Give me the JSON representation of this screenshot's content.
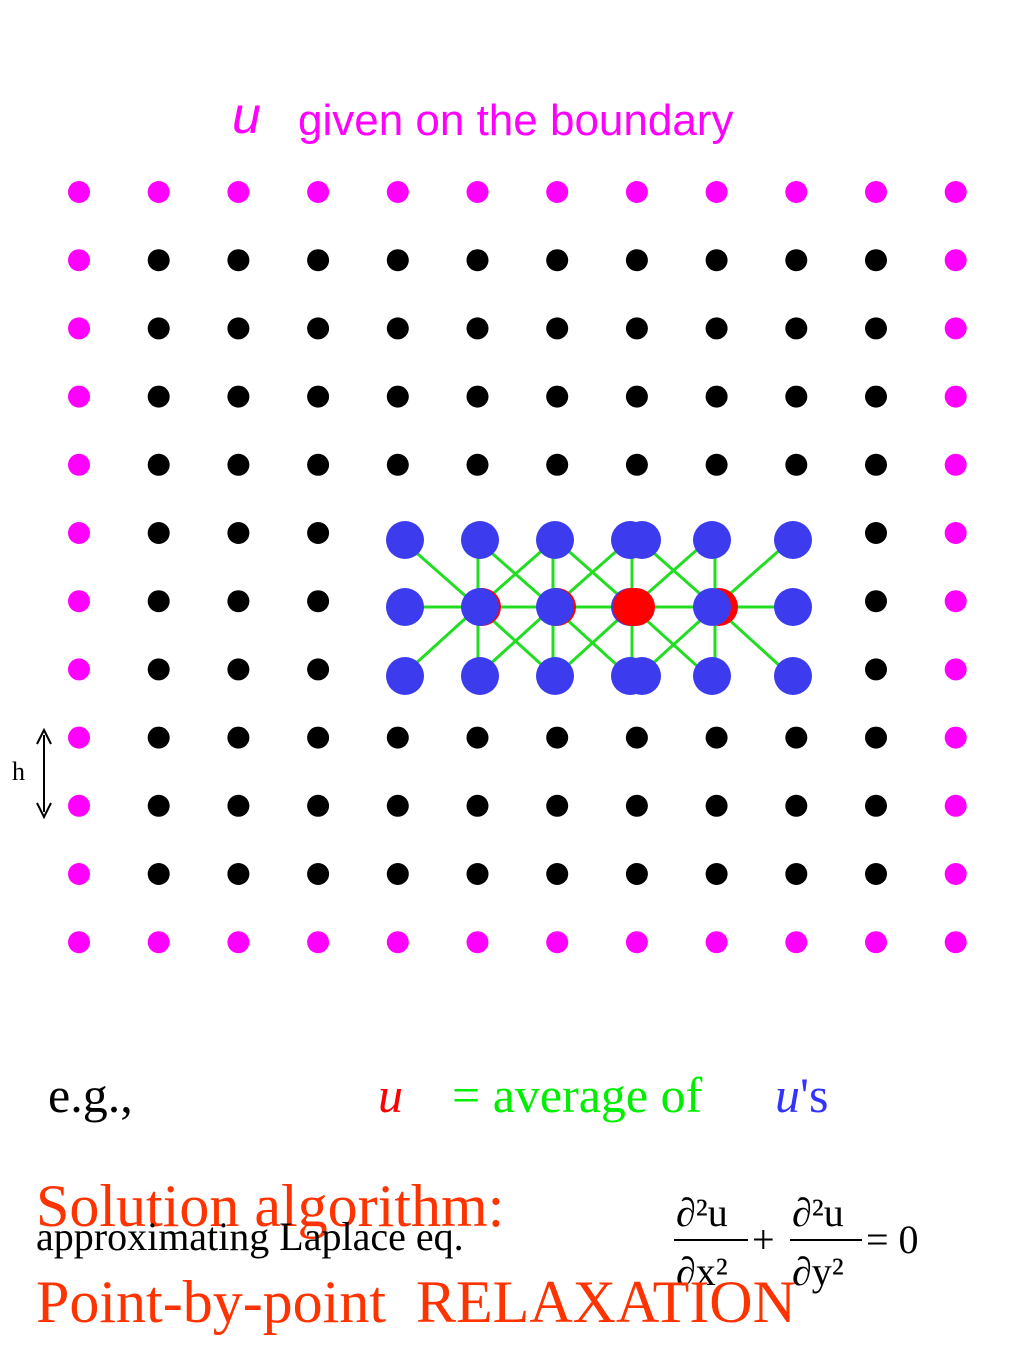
{
  "header": {
    "symbol": "u",
    "text": "given on the boundary"
  },
  "spacing_label": "h",
  "example": {
    "prefix": "e.g.,",
    "symbol": "u",
    "relation": "= average of",
    "symbol2": "u",
    "suffix": "'s"
  },
  "caption": "approximating Laplace eq.",
  "equation": {
    "num1": "∂²u",
    "den1": "∂x²",
    "plus": "+",
    "num2": "∂²u",
    "den2": "∂y²",
    "rhs": "= 0"
  },
  "footer": {
    "line1": "Solution algorithm:",
    "line2": "Point-by-point  RELAXATION"
  }
}
